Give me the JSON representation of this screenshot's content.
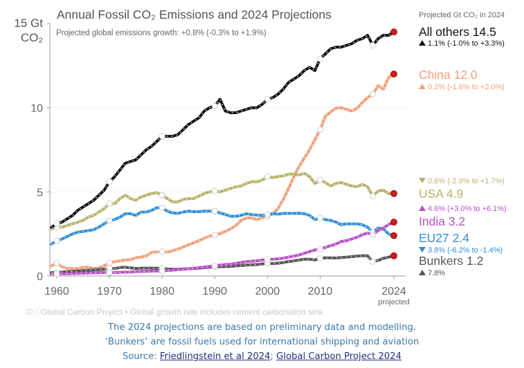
{
  "chart_data": {
    "type": "line",
    "title": "Annual Fossil CO₂ Emissions and 2024 Projections",
    "subtitle": "Projected global emissions growth: +0.8% (-0.3% to +1.9%)",
    "ylabel_line1": "15 Gt",
    "ylabel_line2": "CO₂",
    "xlabel": "",
    "ylim": [
      0,
      15
    ],
    "xlim": [
      1959,
      2025
    ],
    "yticks": [
      0,
      5,
      10
    ],
    "yticks_labels": [
      "0",
      "5",
      "10"
    ],
    "xticks": [
      1960,
      1970,
      1980,
      1990,
      2000,
      2010,
      2024
    ],
    "xticks_labels": [
      "1960",
      "1970",
      "1980",
      "1990",
      "2000",
      "2010",
      "2024"
    ],
    "xtick_sublabel": "projected",
    "grid": "horizontal",
    "legend_header": "Projected Gt CO₂ in 2024",
    "legend_placement": "right",
    "credit": "©ⓘGlobal Carbon Project  •  Global growth rate includes cement carbonation sink",
    "years": [
      1959,
      1960,
      1961,
      1962,
      1963,
      1964,
      1965,
      1966,
      1967,
      1968,
      1969,
      1970,
      1971,
      1972,
      1973,
      1974,
      1975,
      1976,
      1977,
      1978,
      1979,
      1980,
      1981,
      1982,
      1983,
      1984,
      1985,
      1986,
      1987,
      1988,
      1989,
      1990,
      1991,
      1992,
      1993,
      1994,
      1995,
      1996,
      1997,
      1998,
      1999,
      2000,
      2001,
      2002,
      2003,
      2004,
      2005,
      2006,
      2007,
      2008,
      2009,
      2010,
      2011,
      2012,
      2013,
      2014,
      2015,
      2016,
      2017,
      2018,
      2019,
      2020,
      2021,
      2022,
      2023,
      2024
    ],
    "series": [
      {
        "name": "All others",
        "label": "All others 14.5",
        "value_2024": 14.5,
        "rate": "1.1% (-1.0% to +3.3%)",
        "trend": "up",
        "color": "#111111",
        "values": [
          2.9,
          3.1,
          3.2,
          3.4,
          3.6,
          3.9,
          4.1,
          4.3,
          4.5,
          4.8,
          5.1,
          5.6,
          5.9,
          6.3,
          6.7,
          6.8,
          6.9,
          7.2,
          7.5,
          7.7,
          8.0,
          8.3,
          8.3,
          8.3,
          8.4,
          8.7,
          9.0,
          9.2,
          9.4,
          9.8,
          10.0,
          10.1,
          10.5,
          9.8,
          9.7,
          9.7,
          9.8,
          9.9,
          10.0,
          10.0,
          10.2,
          10.5,
          10.6,
          10.8,
          11.1,
          11.5,
          11.7,
          11.9,
          12.2,
          12.4,
          12.2,
          12.9,
          13.2,
          13.5,
          13.6,
          13.6,
          13.7,
          13.8,
          14.0,
          14.1,
          14.3,
          13.7,
          14.1,
          14.3,
          14.3,
          14.5
        ]
      },
      {
        "name": "China",
        "label": "China 12.0",
        "value_2024": 12.0,
        "rate": "0.2% (-1.6% to +2.0%)",
        "trend": "up",
        "color": "#f0a07a",
        "values": [
          0.6,
          0.78,
          0.55,
          0.45,
          0.45,
          0.45,
          0.5,
          0.52,
          0.45,
          0.48,
          0.6,
          0.78,
          0.85,
          0.9,
          0.95,
          0.97,
          1.08,
          1.12,
          1.2,
          1.4,
          1.43,
          1.45,
          1.42,
          1.5,
          1.6,
          1.72,
          1.85,
          1.97,
          2.1,
          2.25,
          2.37,
          2.42,
          2.52,
          2.65,
          2.8,
          3.0,
          3.3,
          3.45,
          3.45,
          3.35,
          3.47,
          3.55,
          3.7,
          4.0,
          4.55,
          5.2,
          5.9,
          6.5,
          7.0,
          7.5,
          8.1,
          8.7,
          9.5,
          9.75,
          9.98,
          10.0,
          9.9,
          9.8,
          9.95,
          10.3,
          10.6,
          10.8,
          11.3,
          11.1,
          11.8,
          12.0
        ]
      },
      {
        "name": "USA",
        "label": "USA 4.9",
        "value_2024": 4.9,
        "rate": "0.6% (-2.9% to +1.7%)",
        "trend": "down",
        "color": "#b9b26a",
        "values": [
          2.8,
          2.9,
          2.9,
          3.0,
          3.1,
          3.2,
          3.3,
          3.5,
          3.6,
          3.8,
          4.0,
          4.3,
          4.3,
          4.6,
          4.8,
          4.6,
          4.5,
          4.7,
          4.8,
          4.9,
          4.95,
          4.8,
          4.6,
          4.4,
          4.4,
          4.55,
          4.6,
          4.6,
          4.75,
          4.9,
          5.0,
          5.05,
          5.0,
          5.1,
          5.2,
          5.3,
          5.35,
          5.5,
          5.6,
          5.6,
          5.7,
          5.9,
          5.85,
          5.9,
          5.95,
          6.05,
          6.05,
          6.0,
          6.1,
          5.9,
          5.5,
          5.7,
          5.55,
          5.35,
          5.5,
          5.55,
          5.45,
          5.35,
          5.3,
          5.45,
          5.3,
          4.75,
          5.05,
          5.1,
          4.9,
          4.9
        ]
      },
      {
        "name": "India",
        "label": "India 3.2",
        "value_2024": 3.2,
        "rate": "4.6% (+3.0% to +6.1%)",
        "trend": "up",
        "color": "#b94fc8",
        "values": [
          0.12,
          0.12,
          0.13,
          0.14,
          0.15,
          0.16,
          0.17,
          0.18,
          0.19,
          0.2,
          0.21,
          0.2,
          0.21,
          0.22,
          0.23,
          0.24,
          0.26,
          0.27,
          0.28,
          0.29,
          0.3,
          0.3,
          0.33,
          0.35,
          0.38,
          0.4,
          0.43,
          0.46,
          0.5,
          0.53,
          0.57,
          0.6,
          0.65,
          0.68,
          0.7,
          0.75,
          0.8,
          0.85,
          0.88,
          0.9,
          0.95,
          0.98,
          1.0,
          1.02,
          1.06,
          1.12,
          1.18,
          1.25,
          1.35,
          1.45,
          1.55,
          1.6,
          1.7,
          1.8,
          1.9,
          2.05,
          2.1,
          2.2,
          2.3,
          2.45,
          2.55,
          2.45,
          2.7,
          2.85,
          3.05,
          3.2
        ]
      },
      {
        "name": "EU27",
        "label": "EU27 2.4",
        "value_2024": 2.4,
        "rate": "3.8% (-6.2% to -1.4%)",
        "trend": "down",
        "color": "#2f8fd6",
        "values": [
          1.9,
          2.1,
          2.2,
          2.35,
          2.5,
          2.6,
          2.65,
          2.7,
          2.75,
          2.9,
          3.1,
          3.3,
          3.35,
          3.5,
          3.7,
          3.7,
          3.6,
          3.8,
          3.8,
          3.9,
          4.05,
          4.05,
          3.85,
          3.75,
          3.72,
          3.8,
          3.85,
          3.82,
          3.82,
          3.85,
          3.85,
          3.85,
          3.75,
          3.65,
          3.55,
          3.55,
          3.6,
          3.7,
          3.65,
          3.62,
          3.6,
          3.65,
          3.7,
          3.68,
          3.72,
          3.72,
          3.72,
          3.73,
          3.7,
          3.6,
          3.35,
          3.45,
          3.35,
          3.3,
          3.2,
          3.05,
          3.1,
          3.1,
          3.1,
          3.05,
          2.9,
          2.6,
          2.85,
          2.8,
          2.5,
          2.4
        ]
      },
      {
        "name": "Bunkers",
        "label": "Bunkers 1.2",
        "value_2024": 1.2,
        "rate": "7.8%",
        "trend": "up",
        "color": "#555555",
        "values": [
          0.2,
          0.22,
          0.24,
          0.26,
          0.28,
          0.3,
          0.32,
          0.34,
          0.36,
          0.38,
          0.4,
          0.45,
          0.45,
          0.5,
          0.52,
          0.48,
          0.45,
          0.46,
          0.47,
          0.47,
          0.46,
          0.45,
          0.42,
          0.4,
          0.4,
          0.42,
          0.43,
          0.45,
          0.47,
          0.5,
          0.52,
          0.54,
          0.55,
          0.56,
          0.57,
          0.6,
          0.62,
          0.65,
          0.67,
          0.68,
          0.72,
          0.75,
          0.74,
          0.76,
          0.8,
          0.86,
          0.9,
          0.95,
          1.0,
          1.0,
          0.95,
          1.05,
          1.08,
          1.08,
          1.07,
          1.1,
          1.12,
          1.15,
          1.18,
          1.2,
          1.2,
          0.85,
          0.92,
          1.05,
          1.12,
          1.2
        ]
      }
    ]
  },
  "notes": {
    "line1": "The 2024 projections are based on preliminary data and modelling.",
    "line2": "‘Bunkers’ are fossil fuels used for international shipping and aviation",
    "source_prefix": "Source: ",
    "source_link1": "Friedlingstein et al 2024",
    "source_sep": "; ",
    "source_link2": "Global Carbon Project 2024"
  }
}
